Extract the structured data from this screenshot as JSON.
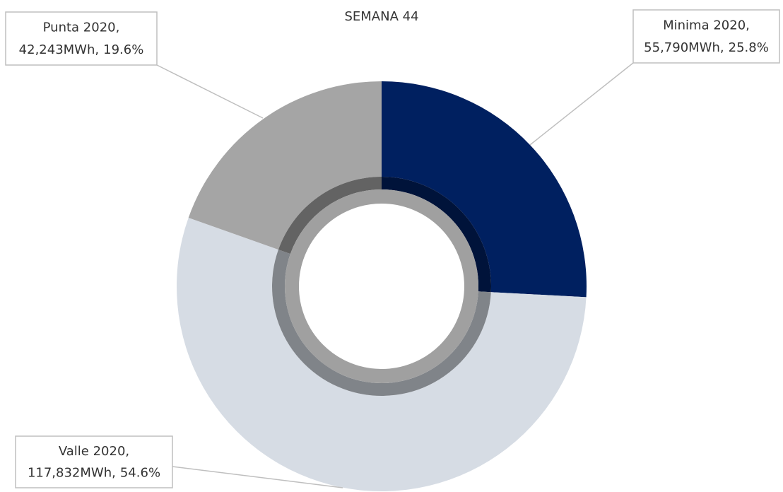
{
  "chart_data": {
    "type": "donut",
    "title": "SEMANA 44",
    "categories": [
      "Minima 2020,",
      "Valle 2020,",
      "Punta 2020,"
    ],
    "values": [
      55790,
      117832,
      42243
    ],
    "value_labels": [
      "55,790MWh,",
      "117,832MWh,",
      "42,243MWh,"
    ],
    "percents": [
      25.8,
      54.6,
      19.6
    ],
    "percent_labels": [
      "25.8%",
      "54.6%",
      "19.6%"
    ],
    "colors": [
      "#002060",
      "#d6dce4",
      "#a5a5a5"
    ],
    "start_angle": 0,
    "direction": "clockwise"
  }
}
